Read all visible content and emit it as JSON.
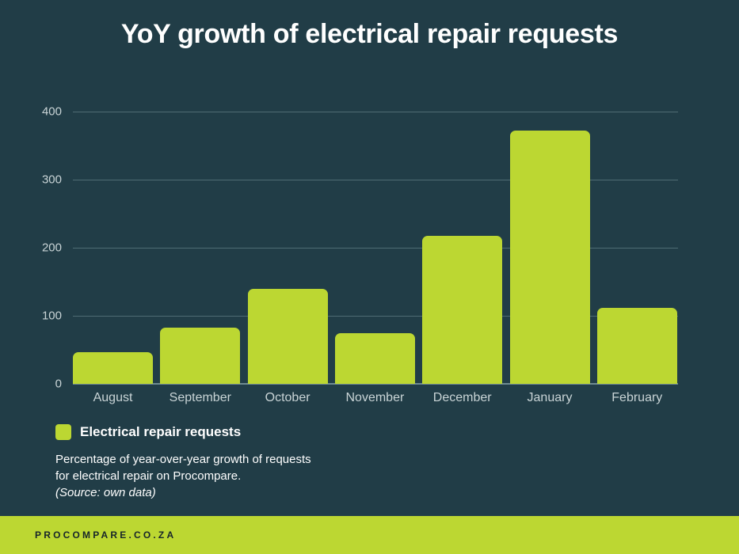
{
  "title": "YoY growth of electrical repair requests",
  "colors": {
    "background": "#213d47",
    "bar": "#bcd732",
    "footer": "#bcd732",
    "gridline": "#4f6c74"
  },
  "legend": {
    "label": "Electrical repair requests"
  },
  "description": {
    "text": "Percentage of year-over-year growth of requests for electrical repair on Procompare.",
    "source": "(Source: own data)"
  },
  "footer": {
    "text": "PROCOMPARE.CO.ZA"
  },
  "chart_data": {
    "type": "bar",
    "title": "YoY growth of electrical repair requests",
    "xlabel": "",
    "ylabel": "",
    "categories": [
      "August",
      "September",
      "October",
      "November",
      "December",
      "January",
      "February"
    ],
    "series": [
      {
        "name": "Electrical repair requests",
        "values": [
          47,
          82,
          140,
          75,
          218,
          372,
          112
        ]
      }
    ],
    "yticks": [
      "0",
      "100",
      "200",
      "300",
      "400"
    ],
    "ylim": [
      0,
      400
    ],
    "grid": true,
    "legend_position": "bottom-left"
  }
}
